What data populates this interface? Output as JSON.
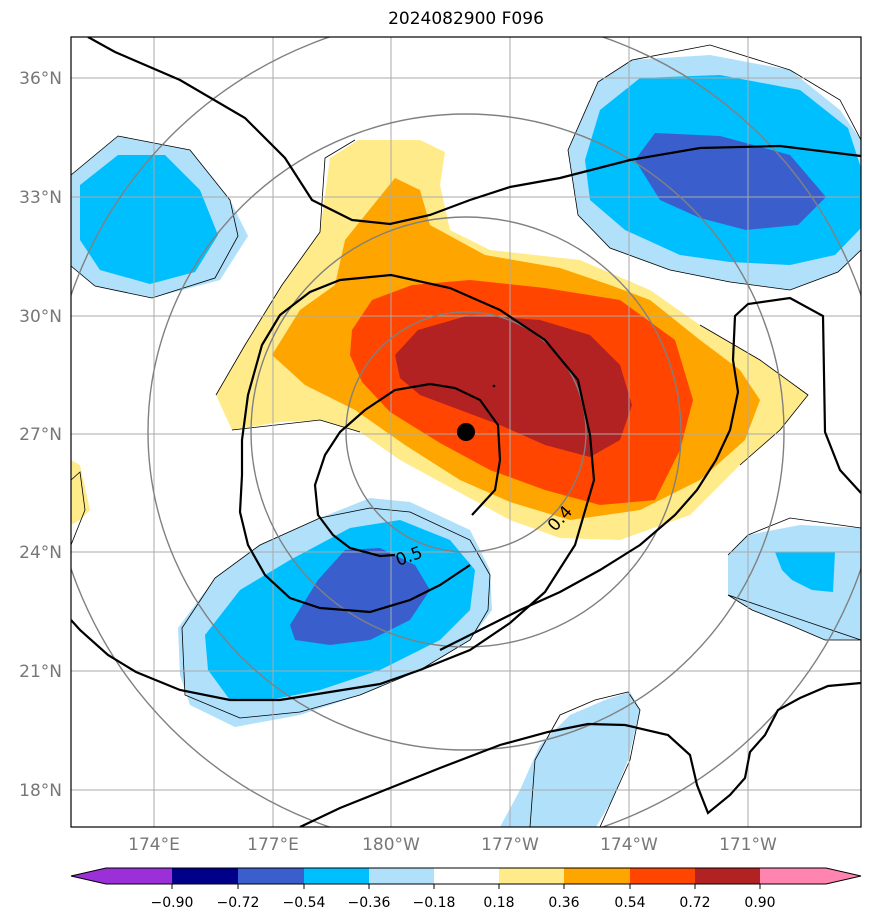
{
  "title": "2024082900 F096",
  "lat_labels": [
    "36°N",
    "33°N",
    "30°N",
    "27°N",
    "24°N",
    "21°N",
    "18°N"
  ],
  "lon_labels": [
    "174°E",
    "177°E",
    "180°W",
    "177°W",
    "174°W",
    "171°W"
  ],
  "contour_labels": [
    "0.5",
    "0.4"
  ],
  "colorbar": {
    "ticks": [
      "−0.90",
      "−0.72",
      "−0.54",
      "−0.36",
      "−0.18",
      "0.18",
      "0.36",
      "0.54",
      "0.72",
      "0.90"
    ],
    "colors": [
      "#9b30d8",
      "#00008b",
      "#3a5fcd",
      "#00bfff",
      "#b0e0fa",
      "#ffffff",
      "#ffeb8a",
      "#ffa500",
      "#ff4500",
      "#b22222",
      "#ff85b0"
    ]
  },
  "marker": "storm-center-dot",
  "colors": {
    "light_blue": "#b0e0fa",
    "blue": "#00bfff",
    "dark_blue": "#3a5fcd",
    "yellow": "#ffeb8a",
    "orange": "#ffa500",
    "red_orange": "#ff4500",
    "dark_red": "#b22222",
    "grid": "#999999",
    "range_rings": "#808080"
  }
}
